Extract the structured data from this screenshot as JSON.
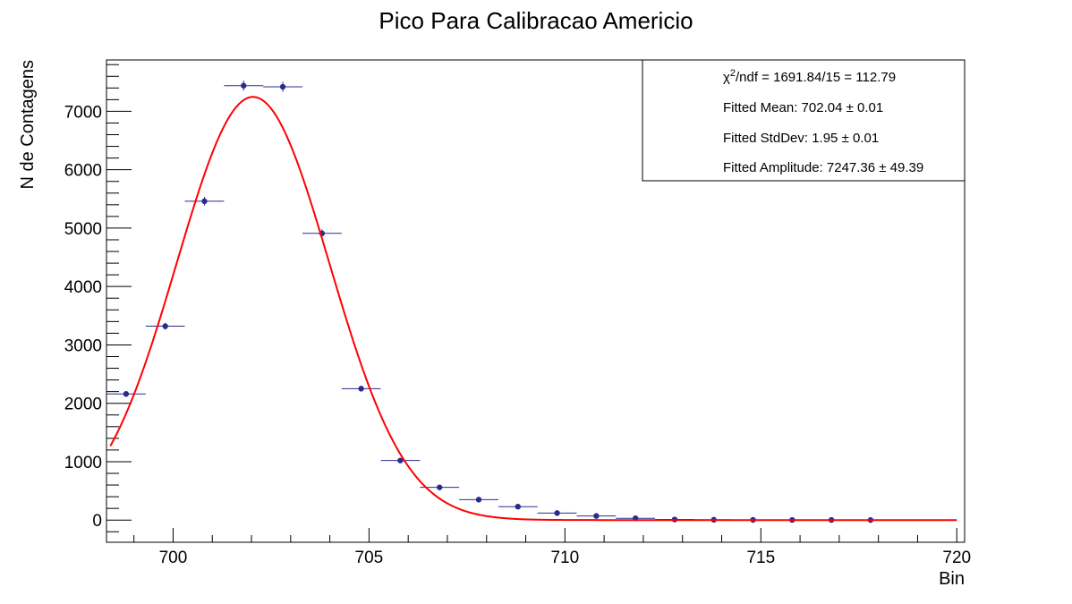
{
  "chart_data": {
    "type": "scatter",
    "title": "Pico Para Calibracao Americio",
    "xlabel": "Bin",
    "ylabel": "N de Contagens",
    "xlim": [
      698.3,
      720.2
    ],
    "ylim": [
      -380,
      7880
    ],
    "x_ticks": [
      700,
      705,
      710,
      715,
      720
    ],
    "x_tick_labels": [
      "700",
      "705",
      "710",
      "715",
      "720"
    ],
    "y_ticks": [
      0,
      1000,
      2000,
      3000,
      4000,
      5000,
      6000,
      7000
    ],
    "y_tick_labels": [
      "0",
      "1000",
      "2000",
      "3000",
      "4000",
      "5000",
      "6000",
      "7000"
    ],
    "grid": false,
    "legend_position": "top-right",
    "series": [
      {
        "kind": "points-with-errors",
        "color": "#2b2b8f",
        "x": [
          698.8,
          699.8,
          700.8,
          701.8,
          702.8,
          703.8,
          704.8,
          705.8,
          706.8,
          707.8,
          708.8,
          709.8,
          710.8,
          711.8,
          712.8,
          713.8,
          714.8,
          715.8,
          716.8,
          717.8
        ],
        "y": [
          2160,
          3320,
          5460,
          7440,
          7420,
          4910,
          2250,
          1020,
          560,
          350,
          230,
          120,
          70,
          30,
          10,
          5,
          3,
          2,
          2,
          1
        ],
        "x_err": 0.5,
        "y_err": [
          46,
          58,
          74,
          86,
          86,
          70,
          47,
          32,
          24,
          19,
          15,
          11,
          8,
          5,
          3,
          2,
          2,
          1,
          1,
          1
        ]
      },
      {
        "kind": "gaussian-fit",
        "color": "#ff0000",
        "mean": 702.04,
        "sigma": 1.95,
        "amplitude": 7247.36,
        "x_range": [
          698.4,
          720.0
        ]
      }
    ],
    "stats_box": {
      "chi2_label": "/ndf = 1691.84/15 = 112.79",
      "mean": "Fitted Mean: 702.04 ± 0.01",
      "stddev": "Fitted StdDev: 1.95 ± 0.01",
      "amplitude": "Fitted Amplitude: 7247.36 ± 49.39"
    }
  }
}
